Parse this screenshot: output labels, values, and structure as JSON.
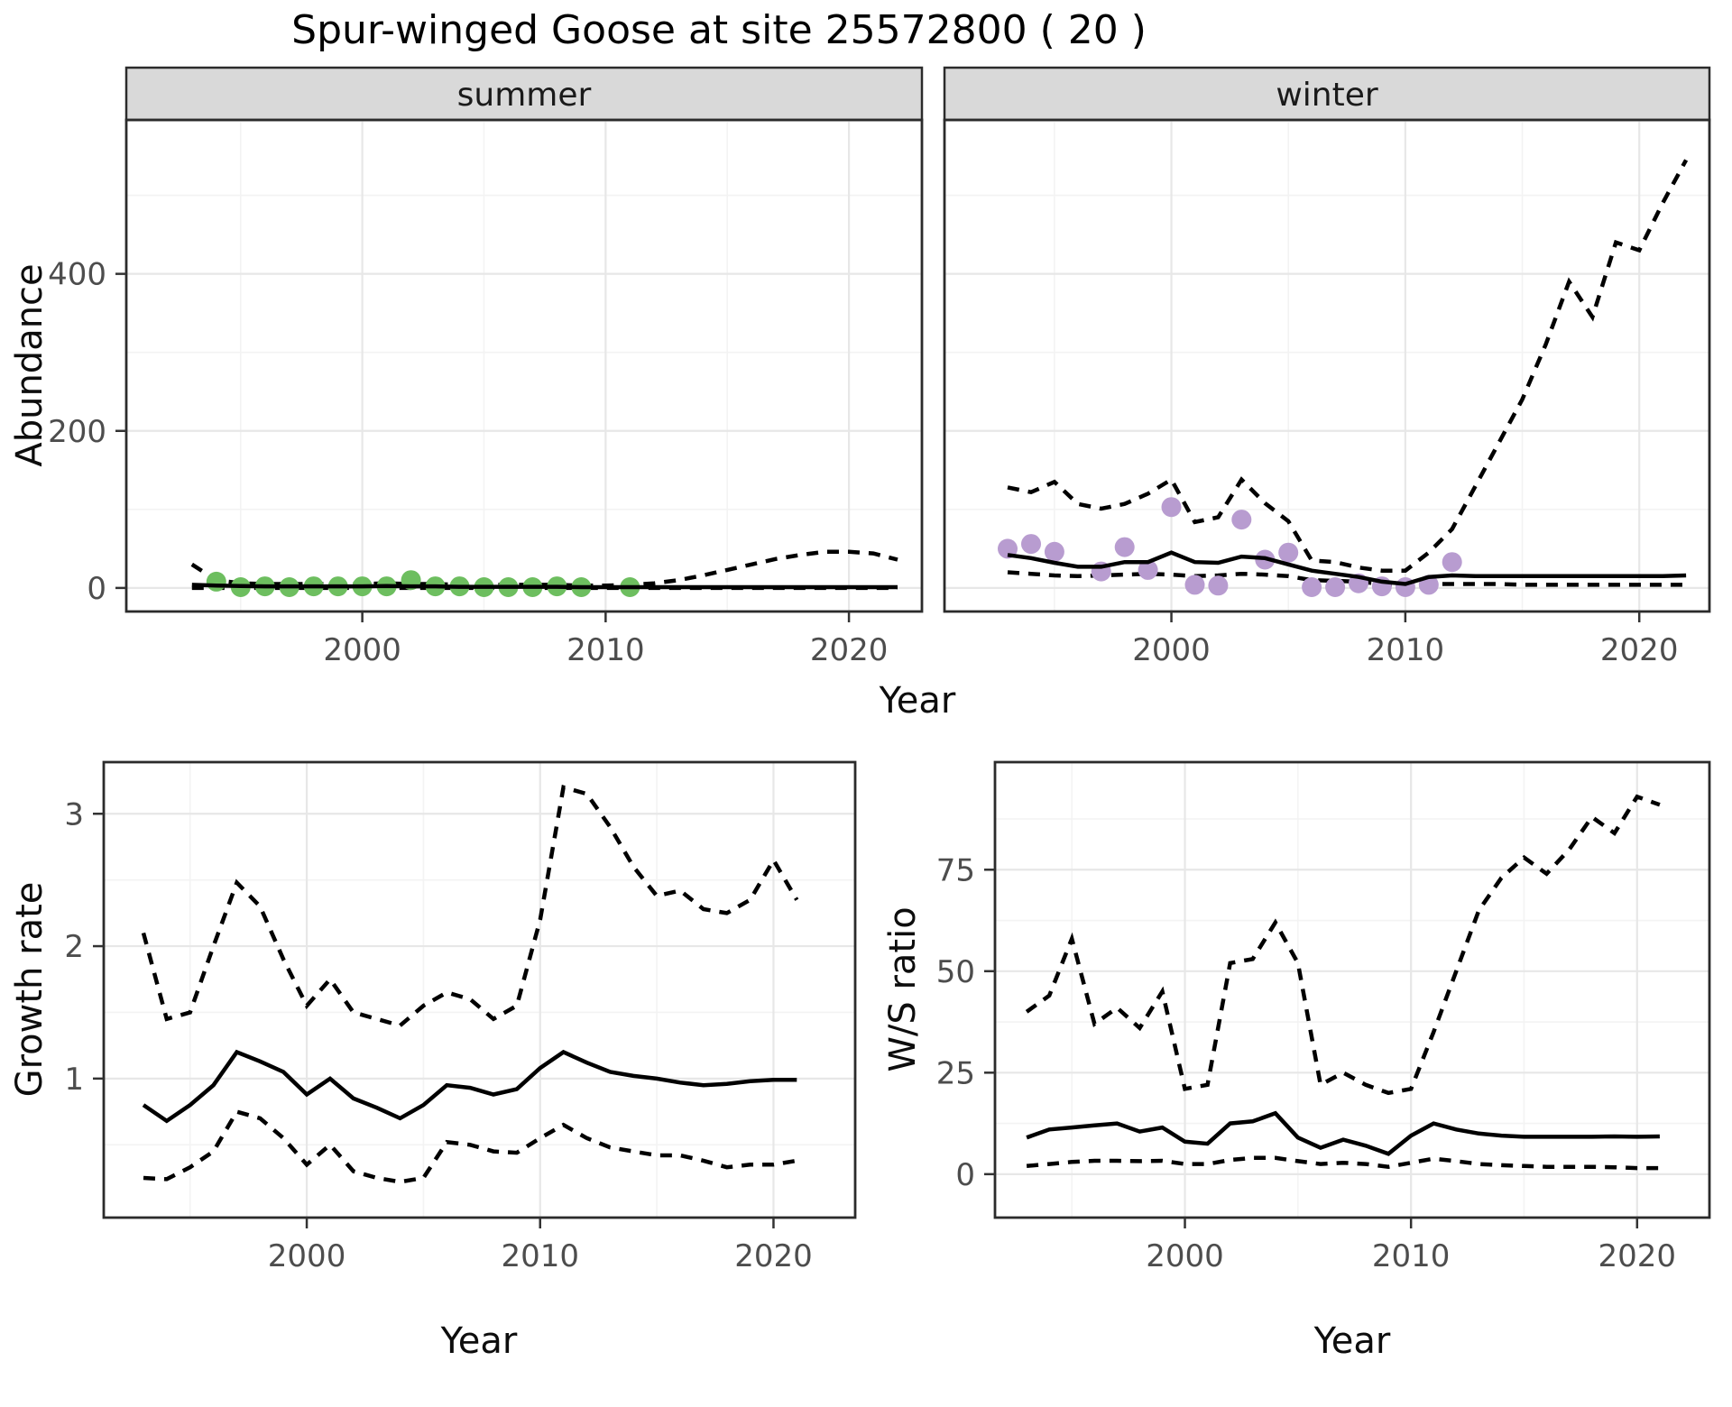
{
  "title": "Spur-winged Goose at site 25572800 ( 20 )",
  "colors": {
    "observed_summer": "#6dbe5f",
    "observed_winter": "#b89cd0",
    "line": "#000000",
    "strip_fill": "#d9d9d9",
    "panel_border": "#2b2b2b",
    "grid_major": "#e7e7e7",
    "grid_minor": "#f3f3f3",
    "axis_text": "#4d4d4d"
  },
  "chart_data": {
    "abundance": {
      "type": "line",
      "ylabel": "Abundance",
      "xlabel": "Year",
      "legend_position": "none",
      "grid": true,
      "x_ticks": [
        2000,
        2010,
        2020
      ],
      "x_minor": [
        1995,
        2005,
        2015
      ],
      "y_ticks": [
        0,
        200,
        400
      ],
      "y_minor": [
        100,
        300,
        500
      ],
      "x_range": [
        1990.3,
        2023.0
      ],
      "y_range": [
        -30,
        596
      ],
      "facets": [
        {
          "name": "summer",
          "point_color_key": "observed_summer",
          "observed": [
            [
              1994,
              8
            ],
            [
              1995,
              1
            ],
            [
              1996,
              2
            ],
            [
              1997,
              1
            ],
            [
              1998,
              2
            ],
            [
              1999,
              2
            ],
            [
              2000,
              2
            ],
            [
              2001,
              2
            ],
            [
              2002,
              10
            ],
            [
              2003,
              2
            ],
            [
              2004,
              2
            ],
            [
              2005,
              1
            ],
            [
              2006,
              1
            ],
            [
              2007,
              1
            ],
            [
              2008,
              2
            ],
            [
              2009,
              1
            ],
            [
              2011,
              1
            ]
          ],
          "fit": {
            "start_year": 1993,
            "values": [
              4,
              3,
              2.5,
              2,
              2,
              2,
              2,
              2,
              2.5,
              2,
              2,
              1.5,
              1.5,
              1.5,
              1.5,
              1.5,
              1,
              1,
              1,
              1,
              1,
              1,
              1,
              1,
              1,
              1,
              1,
              1,
              1,
              1
            ]
          },
          "upper": {
            "start_year": 1993,
            "values": [
              30,
              10,
              6,
              5,
              5,
              5,
              5,
              5,
              6,
              5,
              5,
              4,
              4,
              4,
              4,
              4,
              3,
              3,
              4,
              6,
              10,
              16,
              23,
              30,
              37,
              42,
              46,
              46,
              44,
              36
            ]
          },
          "lower": {
            "start_year": 1993,
            "values": [
              0,
              0,
              0,
              0,
              0,
              0,
              0,
              0,
              0,
              0,
              0,
              0,
              0,
              0,
              0,
              0,
              0,
              0,
              0,
              0,
              0,
              0,
              0,
              0,
              0,
              0,
              0,
              0,
              0,
              0
            ]
          }
        },
        {
          "name": "winter",
          "point_color_key": "observed_winter",
          "observed": [
            [
              1993,
              50
            ],
            [
              1994,
              56
            ],
            [
              1995,
              46
            ],
            [
              1997,
              21
            ],
            [
              1998,
              52
            ],
            [
              1999,
              23
            ],
            [
              2000,
              103
            ],
            [
              2001,
              4
            ],
            [
              2002,
              3
            ],
            [
              2003,
              87
            ],
            [
              2004,
              36
            ],
            [
              2005,
              45
            ],
            [
              2006,
              1
            ],
            [
              2007,
              1
            ],
            [
              2008,
              6
            ],
            [
              2009,
              2
            ],
            [
              2010,
              1
            ],
            [
              2011,
              4
            ],
            [
              2012,
              33
            ]
          ],
          "fit": {
            "start_year": 1993,
            "values": [
              42,
              38,
              32,
              27,
              27,
              33,
              33,
              45,
              33,
              32,
              40,
              38,
              30,
              22,
              18,
              14,
              8,
              5,
              14,
              16,
              15,
              15,
              15,
              15,
              15,
              15,
              15,
              15,
              15,
              16
            ]
          },
          "upper": {
            "start_year": 1993,
            "values": [
              128,
              122,
              135,
              107,
              101,
              107,
              120,
              138,
              84,
              90,
              138,
              108,
              85,
              35,
              33,
              26,
              22,
              22,
              45,
              75,
              130,
              185,
              240,
              310,
              390,
              345,
              440,
              430,
              490,
              545
            ]
          },
          "lower": {
            "start_year": 1993,
            "values": [
              20,
              18,
              16,
              15,
              16,
              17,
              18,
              17,
              15,
              16,
              18,
              17,
              15,
              10,
              9,
              8,
              5,
              3,
              5,
              5,
              5,
              5,
              4,
              4,
              4,
              4,
              4,
              4,
              4,
              4
            ]
          }
        }
      ]
    },
    "growth_rate": {
      "type": "line",
      "ylabel": "Growth rate",
      "xlabel": "Year",
      "grid": true,
      "x_ticks": [
        2000,
        2010,
        2020
      ],
      "x_minor": [
        1995,
        2005,
        2015
      ],
      "y_ticks": [
        1,
        2,
        3
      ],
      "y_minor": [
        0.5,
        1.5,
        2.5
      ],
      "x_range": [
        1991.3,
        2023.5
      ],
      "y_range": [
        -0.05,
        3.39
      ],
      "fit": {
        "start_year": 1993,
        "values": [
          0.8,
          0.68,
          0.8,
          0.95,
          1.2,
          1.13,
          1.05,
          0.88,
          1.0,
          0.85,
          0.78,
          0.7,
          0.8,
          0.95,
          0.93,
          0.88,
          0.92,
          1.08,
          1.2,
          1.12,
          1.05,
          1.02,
          1.0,
          0.97,
          0.95,
          0.96,
          0.98,
          0.99,
          0.99
        ]
      },
      "upper": {
        "start_year": 1993,
        "values": [
          2.1,
          1.45,
          1.5,
          2.0,
          2.48,
          2.3,
          1.9,
          1.55,
          1.75,
          1.5,
          1.45,
          1.4,
          1.55,
          1.65,
          1.6,
          1.45,
          1.55,
          2.2,
          3.2,
          3.15,
          2.9,
          2.6,
          2.38,
          2.42,
          2.28,
          2.25,
          2.35,
          2.65,
          2.35
        ]
      },
      "lower": {
        "start_year": 1993,
        "values": [
          0.25,
          0.24,
          0.33,
          0.45,
          0.75,
          0.7,
          0.55,
          0.35,
          0.5,
          0.3,
          0.25,
          0.22,
          0.25,
          0.52,
          0.5,
          0.45,
          0.44,
          0.55,
          0.65,
          0.55,
          0.48,
          0.45,
          0.42,
          0.42,
          0.38,
          0.33,
          0.35,
          0.35,
          0.38
        ]
      }
    },
    "ws_ratio": {
      "type": "line",
      "ylabel": "W/S ratio",
      "xlabel": "Year",
      "grid": true,
      "x_ticks": [
        2000,
        2010,
        2020
      ],
      "x_minor": [
        1995,
        2005,
        2015
      ],
      "y_ticks": [
        0,
        25,
        50,
        75
      ],
      "y_minor": [
        12.5,
        37.5,
        62.5,
        87.5
      ],
      "x_range": [
        1991.6,
        2023.2
      ],
      "y_range": [
        -10.7,
        101.5
      ],
      "fit": {
        "start_year": 1993,
        "values": [
          9,
          11,
          11.5,
          12,
          12.5,
          10.5,
          11.5,
          8,
          7.5,
          12.5,
          13,
          15,
          9,
          6.5,
          8.5,
          7,
          5,
          9.5,
          12.5,
          11,
          10,
          9.5,
          9.2,
          9.2,
          9.2,
          9.2,
          9.3,
          9.2,
          9.3
        ]
      },
      "upper": {
        "start_year": 1993,
        "values": [
          40,
          44,
          58,
          37,
          41,
          36,
          45,
          21,
          22,
          52,
          53,
          62,
          52,
          22,
          25,
          22,
          20,
          21,
          35,
          50,
          65,
          73,
          78,
          74,
          80,
          88,
          84,
          93,
          91
        ]
      },
      "lower": {
        "start_year": 1993,
        "values": [
          2,
          2.5,
          3,
          3.3,
          3.3,
          3.2,
          3.3,
          2.5,
          2.5,
          3.5,
          4,
          4,
          3.2,
          2.5,
          2.8,
          2.5,
          1.8,
          2.8,
          3.8,
          3.2,
          2.5,
          2.2,
          2,
          1.8,
          1.8,
          1.8,
          1.7,
          1.5,
          1.5
        ]
      }
    }
  }
}
